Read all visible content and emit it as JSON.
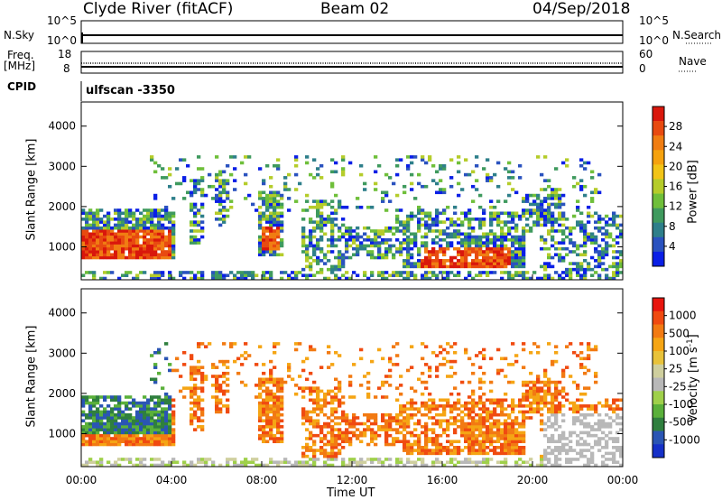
{
  "header": {
    "station": "Clyde River (fitACF)",
    "beam": "Beam 02",
    "date": "04/Sep/2018"
  },
  "strips": {
    "nsky_label": "N.Sky",
    "nsky_ticks": [
      "10^5",
      "10^0"
    ],
    "nsearch_label": "N.Search",
    "nsearch_ticks": [
      "10^5",
      "10^0"
    ],
    "freq_label": "Freq.",
    "freq_unit": "[MHz]",
    "freq_ticks": [
      "18",
      "8"
    ],
    "nave_label": "Nave",
    "nave_ticks": [
      "60",
      "0"
    ],
    "cpid_label": "CPID",
    "cpid_value": "ulfscan -3350"
  },
  "colors": {
    "power_scale": [
      "#0a1fe6",
      "#2a52bf",
      "#2e7f8a",
      "#3f9a5e",
      "#6fbf3a",
      "#b5cc2a",
      "#f2c417",
      "#f5a20f",
      "#f07d12",
      "#e84a10",
      "#d9170c"
    ],
    "velocity_scale": [
      "#e8150e",
      "#f04a10",
      "#f27a12",
      "#f5a514",
      "#e8c23a",
      "#cfcf9e",
      "#b8b8b8",
      "#9fd04a",
      "#5ab03a",
      "#2f7f3e",
      "#2a55b4",
      "#1530c8"
    ]
  },
  "chart_data": [
    {
      "type": "heatmap",
      "title": "Power",
      "xlabel": "Time UT",
      "ylabel": "Slant Range [km]",
      "x_ticks": [
        "00:00",
        "04:00",
        "08:00",
        "12:00",
        "16:00",
        "20:00",
        "00:00"
      ],
      "xlim_hours": [
        0,
        24
      ],
      "y_ticks": [
        1000,
        2000,
        3000,
        4000
      ],
      "ylim": [
        180,
        4600
      ],
      "colorbar_label": "Power [dB]",
      "colorbar_ticks": [
        4,
        8,
        12,
        16,
        20,
        24,
        28
      ],
      "colorbar_range": [
        0,
        30
      ]
    },
    {
      "type": "heatmap",
      "title": "Velocity",
      "xlabel": "Time UT",
      "ylabel": "Slant Range [km]",
      "x_ticks": [
        "00:00",
        "04:00",
        "08:00",
        "12:00",
        "16:00",
        "20:00",
        "00:00"
      ],
      "xlim_hours": [
        0,
        24
      ],
      "y_ticks": [
        1000,
        2000,
        3000,
        4000
      ],
      "ylim": [
        180,
        4600
      ],
      "colorbar_label": "Velocity [m s",
      "colorbar_label_sup": "-1",
      "colorbar_label_end": "]",
      "colorbar_ticks": [
        "1000",
        "500",
        "100",
        "25",
        "-25",
        "-100",
        "-500",
        "-1000"
      ]
    }
  ]
}
